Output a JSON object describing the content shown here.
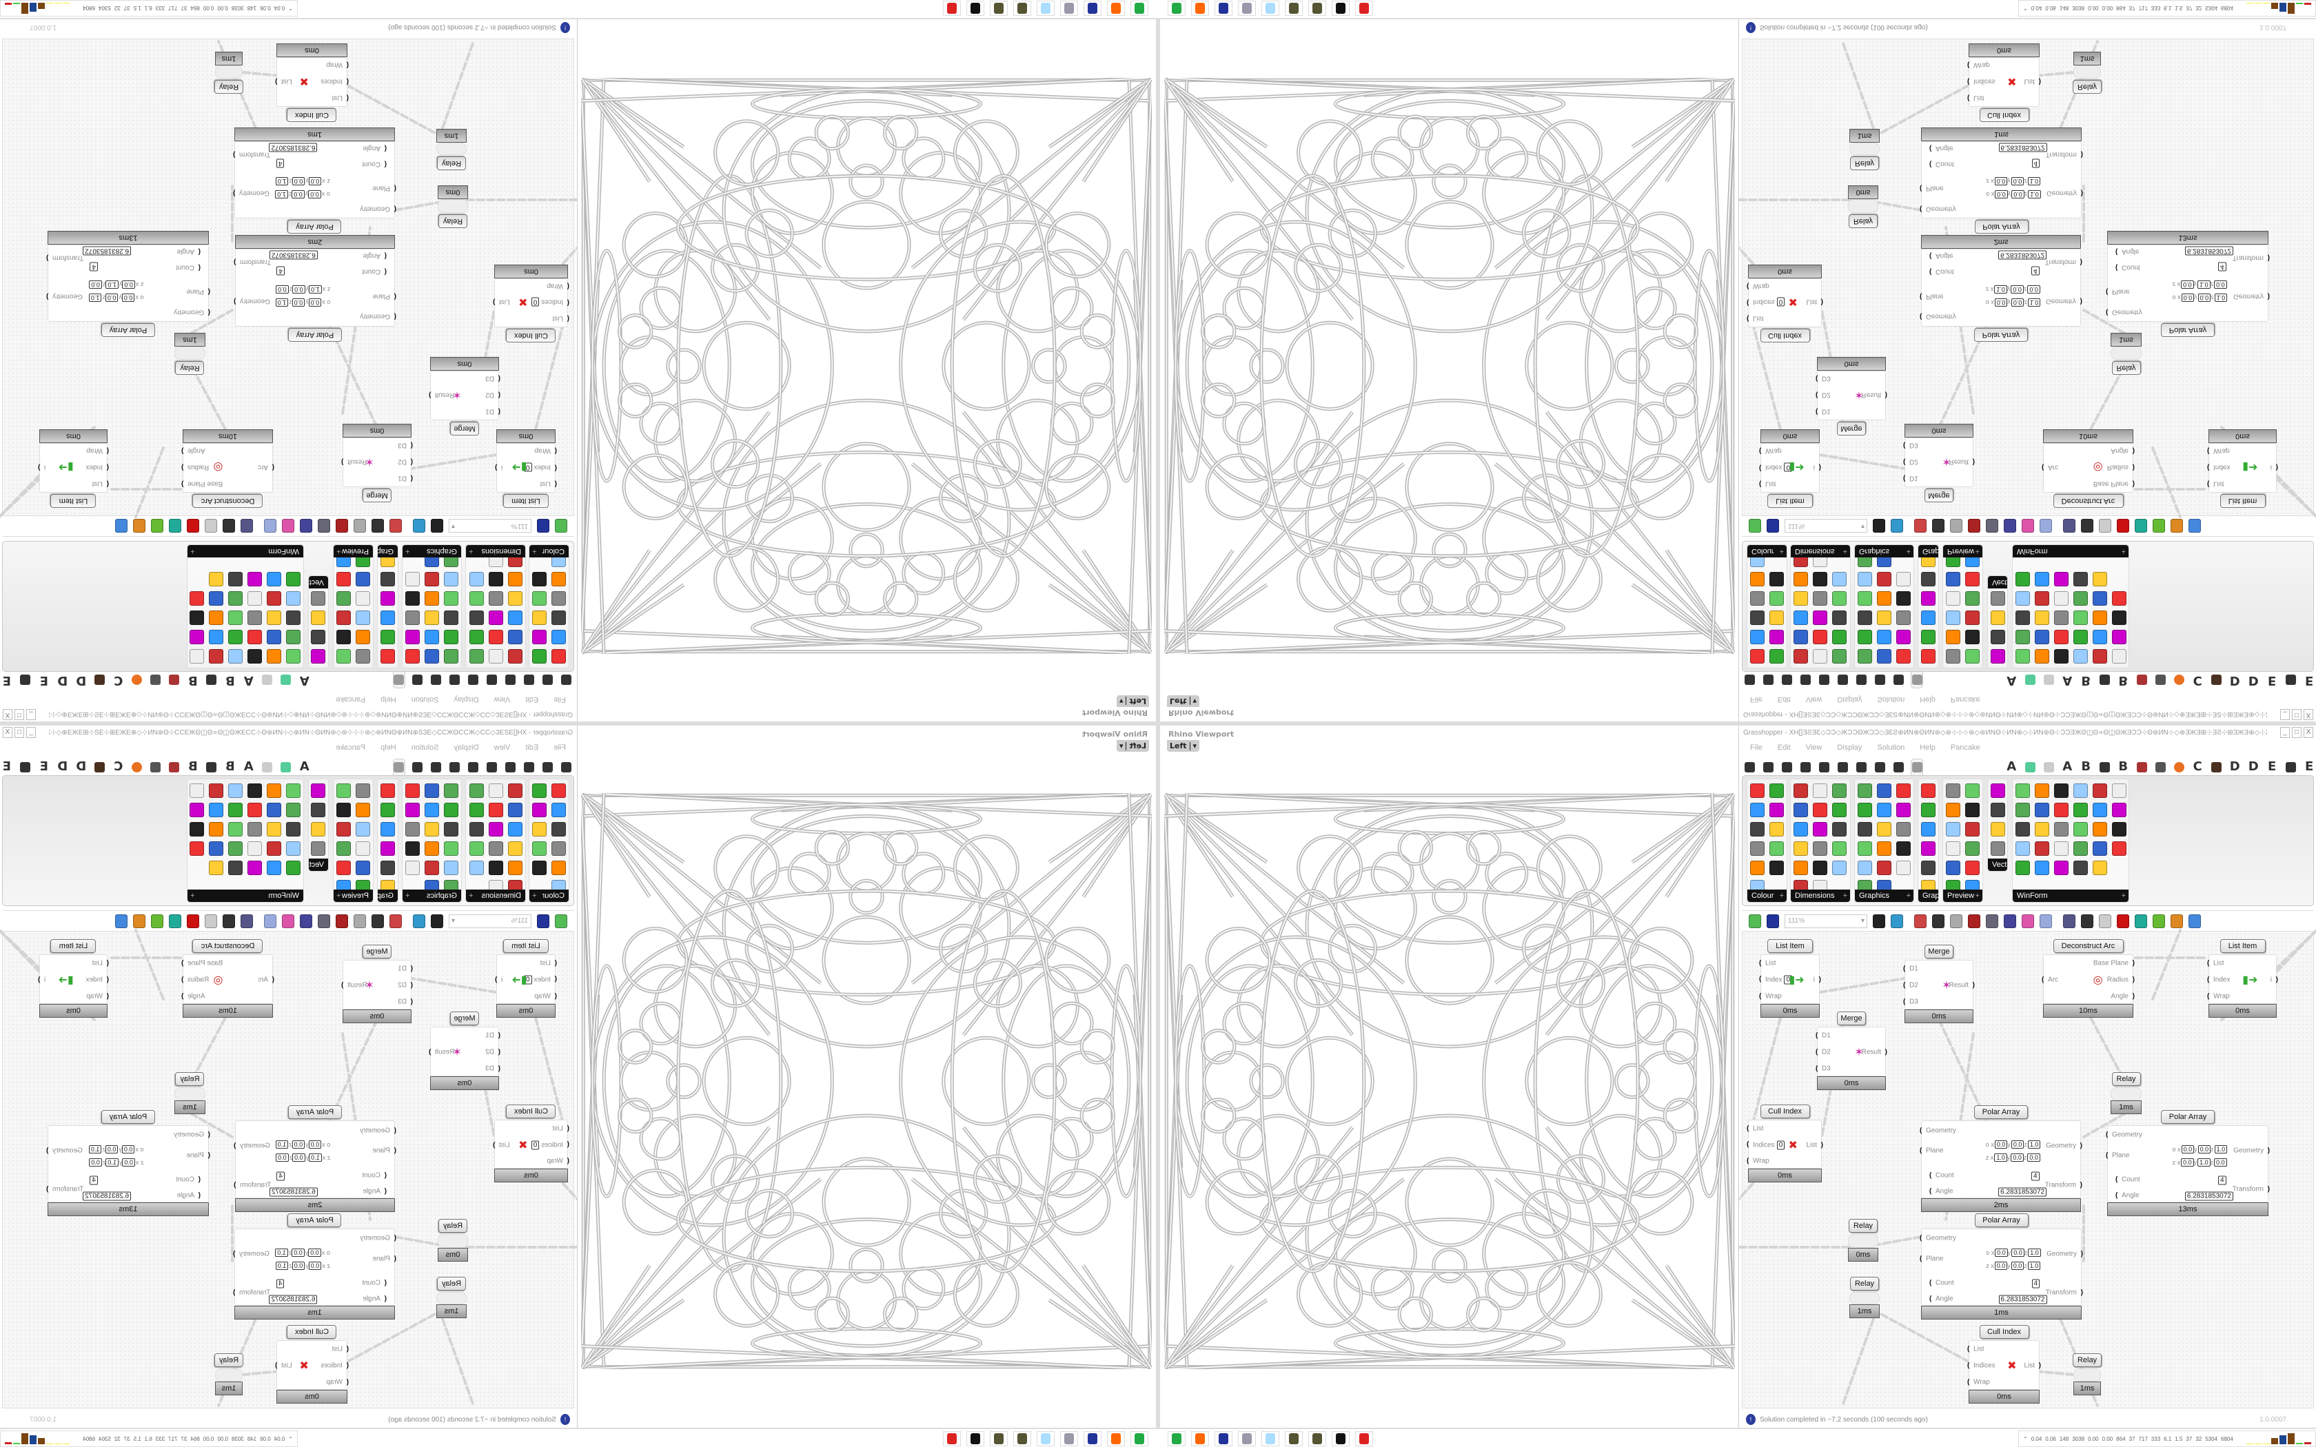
{
  "viewport": {
    "title": "Rhino Viewport",
    "view": "Left"
  },
  "gh": {
    "title": "Grasshopper - XH[]ƎƧƎƐ◇ƆƆ◇ЖƆƆΘЖƆƆ◇ƎƐƧ⊕ИN⊕ΘИN⊛◇⊛⊹⊹⊹⊛◇⊛ИNΘ⊹ИN⊕◇⊹ИN⊛Θ⊹ƆƆƎЖΘ◫Θ∝Θ◫ΘЖƎƆƆ⊹Θ⊛ИN⊹◇⊕ƎЖƎ⊞⊹ƎƧ⊹⊞ƎЖƎ⊕◇⊹Ж◫ƎƎ⊕⊹ƆƆ...",
    "menu": [
      "File",
      "Edit",
      "View",
      "Display",
      "Solution",
      "Help",
      "Pancake"
    ],
    "tabs": [
      {
        "icon": "params-hexagon-icon"
      },
      {
        "icon": "maths-sigma-icon"
      },
      {
        "icon": "sets-fork-icon"
      },
      {
        "icon": "vector-arrow-icon"
      },
      {
        "icon": "curve-loop-icon"
      },
      {
        "icon": "surface-icon"
      },
      {
        "icon": "mesh-icon"
      },
      {
        "icon": "intersect-icon"
      },
      {
        "icon": "transform-icon"
      },
      {
        "icon": "display-eye-icon",
        "active": true
      },
      {
        "label": "A"
      },
      {
        "icon": "crystal-icon"
      },
      {
        "icon": "puzzle-icon"
      },
      {
        "label": "A"
      },
      {
        "label": "B"
      },
      {
        "icon": "bird-icon"
      },
      {
        "label": "B"
      },
      {
        "icon": "shield-icon"
      },
      {
        "icon": "grid-icon"
      },
      {
        "icon": "orange-circle-icon"
      },
      {
        "label": "C"
      },
      {
        "icon": "rooster-icon"
      },
      {
        "label": "D"
      },
      {
        "label": "D"
      },
      {
        "label": "E"
      },
      {
        "icon": "dotted-frame-icon"
      },
      {
        "label": "E"
      }
    ],
    "ribbon_panels": [
      {
        "label": "Colour"
      },
      {
        "label": "Dimensions"
      },
      {
        "label": "Graphics"
      },
      {
        "label": "Grap..."
      },
      {
        "label": "Preview"
      },
      {
        "label": "Vect..."
      },
      {
        "label": "WinForm"
      }
    ],
    "toolbar": {
      "zoom": "111%"
    },
    "nodes": [
      {
        "title": "List Item",
        "inputs": [
          {
            "label": "List"
          },
          {
            "label": "Index",
            "value": "0"
          },
          {
            "label": "Wrap"
          }
        ],
        "outputs": [
          {
            "label": "i"
          }
        ],
        "icon": "list-item-icon",
        "time": "0ms"
      },
      {
        "title": "Merge",
        "inputs": [
          {
            "label": "D1"
          },
          {
            "label": "D2"
          },
          {
            "label": "D3"
          }
        ],
        "outputs": [
          {
            "label": "Result"
          }
        ],
        "icon": "merge-icon",
        "time": "0ms"
      },
      {
        "title": "Deconstruct Arc",
        "inputs": [
          {
            "label": "Arc"
          }
        ],
        "outputs": [
          {
            "label": "Base Plane"
          },
          {
            "label": "Radius"
          },
          {
            "label": "Angle"
          }
        ],
        "icon": "arc-target-icon",
        "time": "10ms"
      },
      {
        "title": "List Item",
        "inputs": [
          {
            "label": "List"
          },
          {
            "label": "Index"
          },
          {
            "label": "Wrap"
          }
        ],
        "outputs": [
          {
            "label": "i"
          }
        ],
        "icon": "list-item-icon",
        "time": "0ms"
      },
      {
        "title": "Merge",
        "inputs": [
          {
            "label": "D1"
          },
          {
            "label": "D2"
          },
          {
            "label": "D3"
          }
        ],
        "outputs": [
          {
            "label": "Result"
          }
        ],
        "icon": "merge-icon",
        "time": "0ms"
      },
      {
        "title": "Relay",
        "inputs": [],
        "outputs": [],
        "time": "1ms"
      },
      {
        "title": "Cull Index",
        "inputs": [
          {
            "label": "List"
          },
          {
            "label": "Indices",
            "value": "0"
          },
          {
            "label": "Wrap"
          }
        ],
        "outputs": [
          {
            "label": "List"
          }
        ],
        "icon": "cull-icon",
        "time": "0ms"
      },
      {
        "title": "Polar Array",
        "polar": true,
        "inputs": [
          {
            "label": "Geometry"
          },
          {
            "label": "Plane"
          },
          {
            "label": "Count",
            "value": "4"
          },
          {
            "label": "Angle",
            "value": "6.2831853072"
          }
        ],
        "outputs": [
          {
            "label": "Geometry"
          },
          {
            "label": "Transform"
          }
        ],
        "plane": {
          "o": [
            "0.0",
            "0.0",
            "1.0"
          ],
          "z": [
            "1.0",
            "0.0",
            "0.0"
          ]
        },
        "time": "2ms"
      },
      {
        "title": "Polar Array",
        "polar": true,
        "inputs": [
          {
            "label": "Geometry"
          },
          {
            "label": "Plane"
          },
          {
            "label": "Count",
            "value": "4"
          },
          {
            "label": "Angle",
            "value": "6.2831853072"
          }
        ],
        "outputs": [
          {
            "label": "Geometry"
          },
          {
            "label": "Transform"
          }
        ],
        "plane": {
          "o": [
            "0.0",
            "0.0",
            "1.0"
          ],
          "z": [
            "0.0",
            "1.0",
            "0.0"
          ]
        },
        "time": "13ms"
      },
      {
        "title": "Relay",
        "inputs": [],
        "outputs": [],
        "time": "0ms"
      },
      {
        "title": "Relay",
        "inputs": [],
        "outputs": [],
        "time": "1ms"
      },
      {
        "title": "Polar Array",
        "polar": true,
        "inputs": [
          {
            "label": "Geometry"
          },
          {
            "label": "Plane"
          },
          {
            "label": "Count",
            "value": "4"
          },
          {
            "label": "Angle",
            "value": "6.2831853072"
          }
        ],
        "outputs": [
          {
            "label": "Geometry"
          },
          {
            "label": "Transform"
          }
        ],
        "plane": {
          "o": [
            "0.0",
            "0.0",
            "1.0"
          ],
          "z": [
            "0.0",
            "0.0",
            "1.0"
          ]
        },
        "time": "1ms"
      },
      {
        "title": "Cull Index",
        "inputs": [
          {
            "label": "List"
          },
          {
            "label": "Indices"
          },
          {
            "label": "Wrap"
          }
        ],
        "outputs": [
          {
            "label": "List"
          }
        ],
        "icon": "cull-icon",
        "time": "0ms"
      },
      {
        "title": "Relay",
        "inputs": [],
        "outputs": [],
        "time": "1ms"
      }
    ],
    "status": {
      "message": "Solution completed in ~7.2 seconds (100 seconds ago)",
      "version": "1.0.0007"
    }
  },
  "taskbar": {
    "apps": [
      "monitor-app-icon",
      "firefox-icon",
      "floppy-64-icon",
      "scroll-notepad-icon",
      "notepad-icon",
      "gear-bug-icon",
      "gear-bug-icon",
      "inkscape-icon",
      "red-app-icon"
    ],
    "tray_stats": [
      "0.04",
      "0.06",
      "148",
      "3038",
      "0.00",
      "0.00",
      "864",
      "37",
      "717",
      "333",
      "6.1",
      "1.5",
      "37",
      "32",
      "5304",
      "6804"
    ]
  },
  "colors": {
    "accent_blue": "#2a3c9c",
    "node_footer": "#9c9c9c",
    "panel_header": "#111111"
  }
}
